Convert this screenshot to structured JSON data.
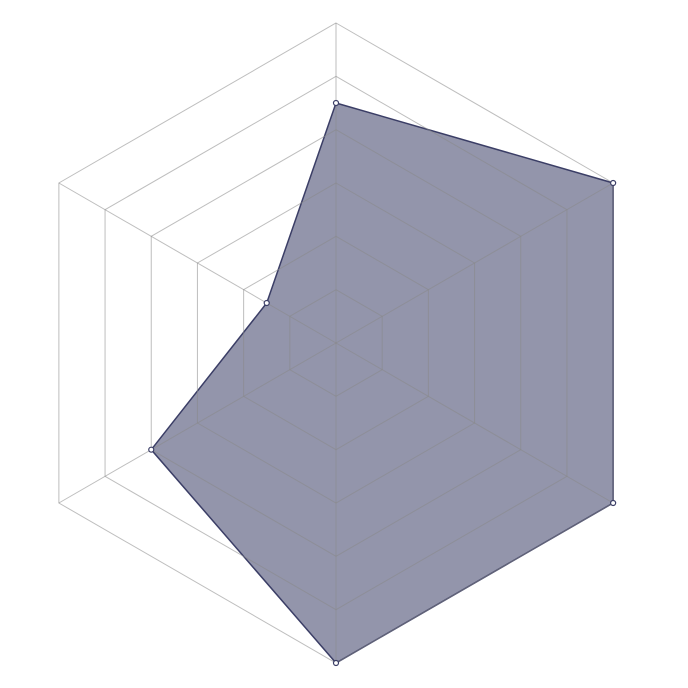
{
  "chart_data": {
    "type": "radar",
    "values": [
      4.5,
      6,
      6,
      6,
      4,
      1.5
    ],
    "color": "#3b3e66",
    "rlim": [
      0,
      6
    ],
    "rticks": [
      1,
      2,
      3,
      4,
      5,
      6
    ],
    "grid": true
  }
}
